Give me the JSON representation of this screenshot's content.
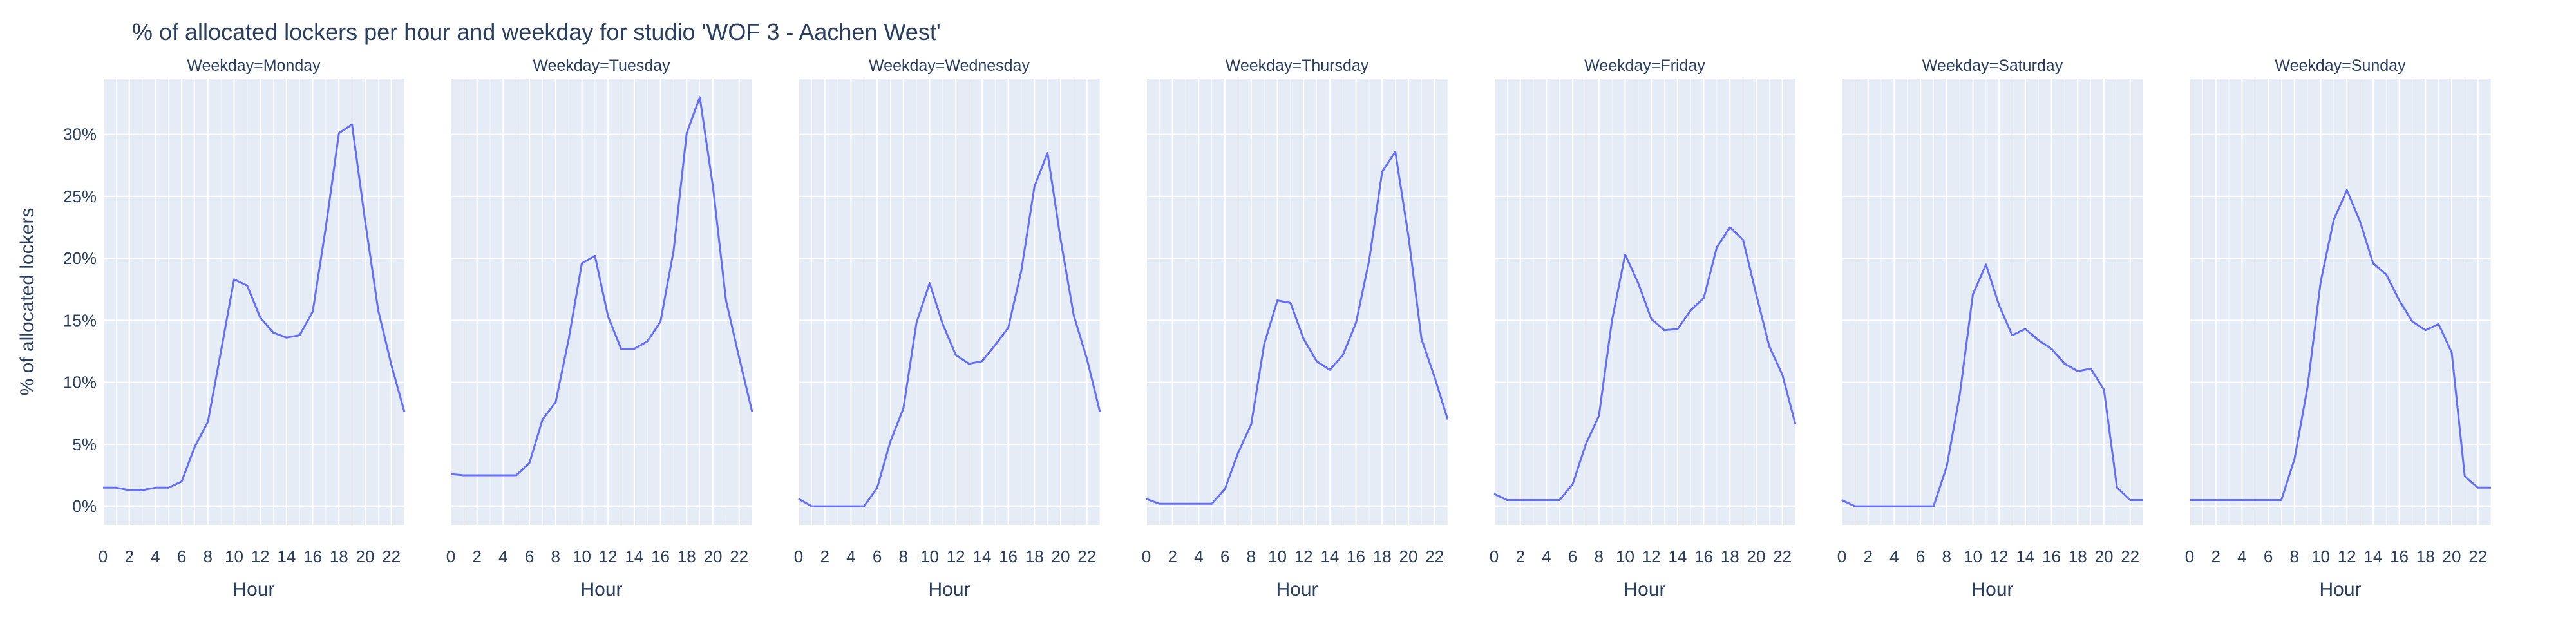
{
  "chart_data": {
    "type": "line",
    "title": "% of allocated lockers per hour and weekday for studio 'WOF 3 - Aachen West'",
    "xlabel": "Hour",
    "ylabel": "% of allocated lockers",
    "facet_prefix": "Weekday=",
    "x": [
      0,
      1,
      2,
      3,
      4,
      5,
      6,
      7,
      8,
      9,
      10,
      11,
      12,
      13,
      14,
      15,
      16,
      17,
      18,
      19,
      20,
      21,
      22,
      23
    ],
    "xlim": [
      0,
      23
    ],
    "ylim": [
      -1.5,
      34.5
    ],
    "xticks": [
      0,
      2,
      4,
      6,
      8,
      10,
      12,
      14,
      16,
      18,
      20,
      22
    ],
    "yticks": [
      0,
      5,
      10,
      15,
      20,
      25,
      30
    ],
    "ytick_labels": [
      "0%",
      "5%",
      "10%",
      "15%",
      "20%",
      "25%",
      "30%"
    ],
    "grid": true,
    "colors": {
      "line": "#636efa",
      "plot_bg": "#e5ecf6",
      "grid": "#ffffff",
      "text": "#2a3f5f"
    },
    "series": [
      {
        "name": "Monday",
        "values": [
          1.5,
          1.5,
          1.3,
          1.3,
          1.5,
          1.5,
          2.0,
          4.8,
          6.8,
          12.5,
          18.3,
          17.8,
          15.2,
          14.0,
          13.6,
          13.8,
          15.7,
          22.5,
          30.1,
          30.8,
          23.0,
          15.8,
          11.4,
          7.6
        ]
      },
      {
        "name": "Tuesday",
        "values": [
          2.6,
          2.5,
          2.5,
          2.5,
          2.5,
          2.5,
          3.5,
          7.0,
          8.4,
          13.5,
          19.6,
          20.2,
          15.3,
          12.7,
          12.7,
          13.3,
          14.9,
          20.6,
          30.1,
          33.0,
          25.8,
          16.6,
          12.0,
          7.6
        ]
      },
      {
        "name": "Wednesday",
        "values": [
          0.6,
          0,
          0,
          0,
          0,
          0,
          1.5,
          5.2,
          7.9,
          14.8,
          18.0,
          14.7,
          12.2,
          11.5,
          11.7,
          13.0,
          14.4,
          19.0,
          25.8,
          28.5,
          21.5,
          15.4,
          11.9,
          7.6
        ]
      },
      {
        "name": "Thursday",
        "values": [
          0.6,
          0.2,
          0.2,
          0.2,
          0.2,
          0.2,
          1.4,
          4.3,
          6.6,
          13.1,
          16.6,
          16.4,
          13.5,
          11.7,
          11.0,
          12.2,
          14.8,
          19.8,
          27.0,
          28.6,
          21.8,
          13.5,
          10.4,
          7.0
        ]
      },
      {
        "name": "Friday",
        "values": [
          1.0,
          0.5,
          0.5,
          0.5,
          0.5,
          0.5,
          1.8,
          5.0,
          7.3,
          15.0,
          20.3,
          18.0,
          15.1,
          14.2,
          14.3,
          15.8,
          16.8,
          20.9,
          22.5,
          21.5,
          17.1,
          12.9,
          10.6,
          6.6
        ]
      },
      {
        "name": "Saturday",
        "values": [
          0.5,
          0,
          0,
          0,
          0,
          0,
          0,
          0,
          3.2,
          9.0,
          17.1,
          19.5,
          16.2,
          13.8,
          14.3,
          13.4,
          12.7,
          11.5,
          10.9,
          11.1,
          9.4,
          1.5,
          0.5,
          0.5
        ]
      },
      {
        "name": "Sunday",
        "values": [
          0.5,
          0.5,
          0.5,
          0.5,
          0.5,
          0.5,
          0.5,
          0.5,
          3.8,
          9.6,
          18.1,
          23.1,
          25.5,
          23.0,
          19.6,
          18.7,
          16.6,
          14.9,
          14.2,
          14.7,
          12.4,
          2.4,
          1.5,
          1.5
        ]
      }
    ]
  }
}
